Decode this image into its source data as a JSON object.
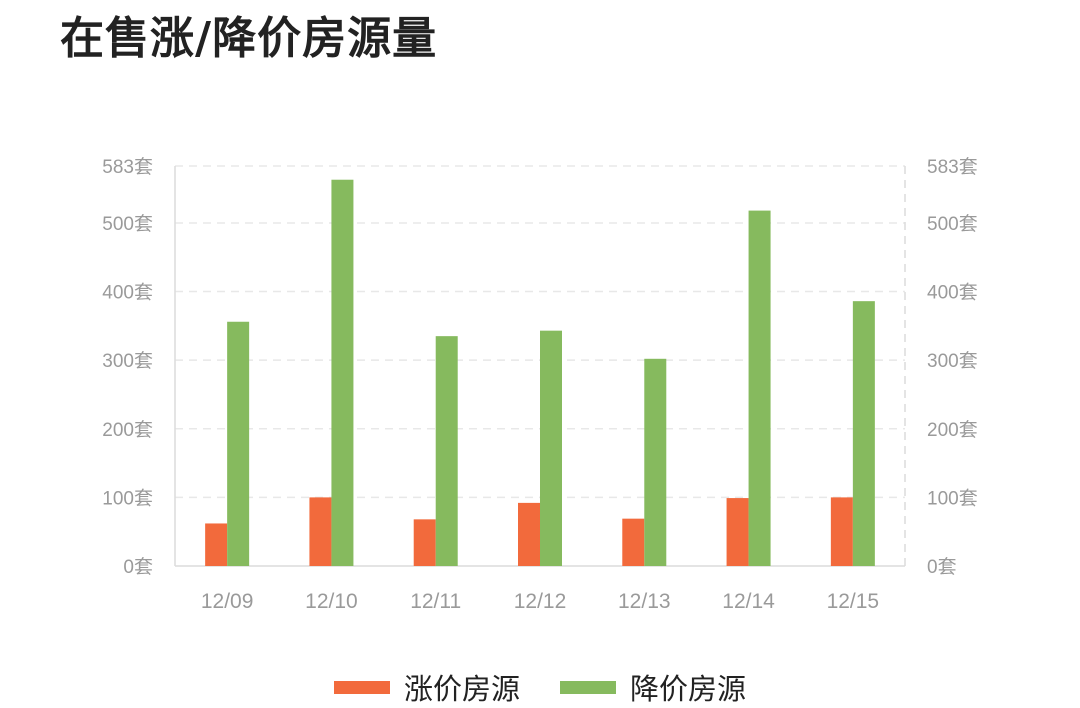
{
  "chart_data": {
    "type": "bar",
    "title": "在售涨/降价房源量",
    "categories": [
      "12/09",
      "12/10",
      "12/11",
      "12/12",
      "12/13",
      "12/14",
      "12/15"
    ],
    "series": [
      {
        "name": "涨价房源",
        "color": "#f26a3c",
        "values": [
          62,
          100,
          68,
          92,
          69,
          99,
          100
        ]
      },
      {
        "name": "降价房源",
        "color": "#86ba5e",
        "values": [
          356,
          563,
          335,
          343,
          302,
          518,
          386
        ]
      }
    ],
    "ylim": [
      0,
      583
    ],
    "yticks": [
      0,
      100,
      200,
      300,
      400,
      500,
      583
    ],
    "ytick_labels": [
      "0套",
      "100套",
      "200套",
      "300套",
      "400套",
      "500套",
      "583套"
    ],
    "y_axis_both_sides": true,
    "grid": "horizontal dashed",
    "legend_position": "bottom-center"
  }
}
